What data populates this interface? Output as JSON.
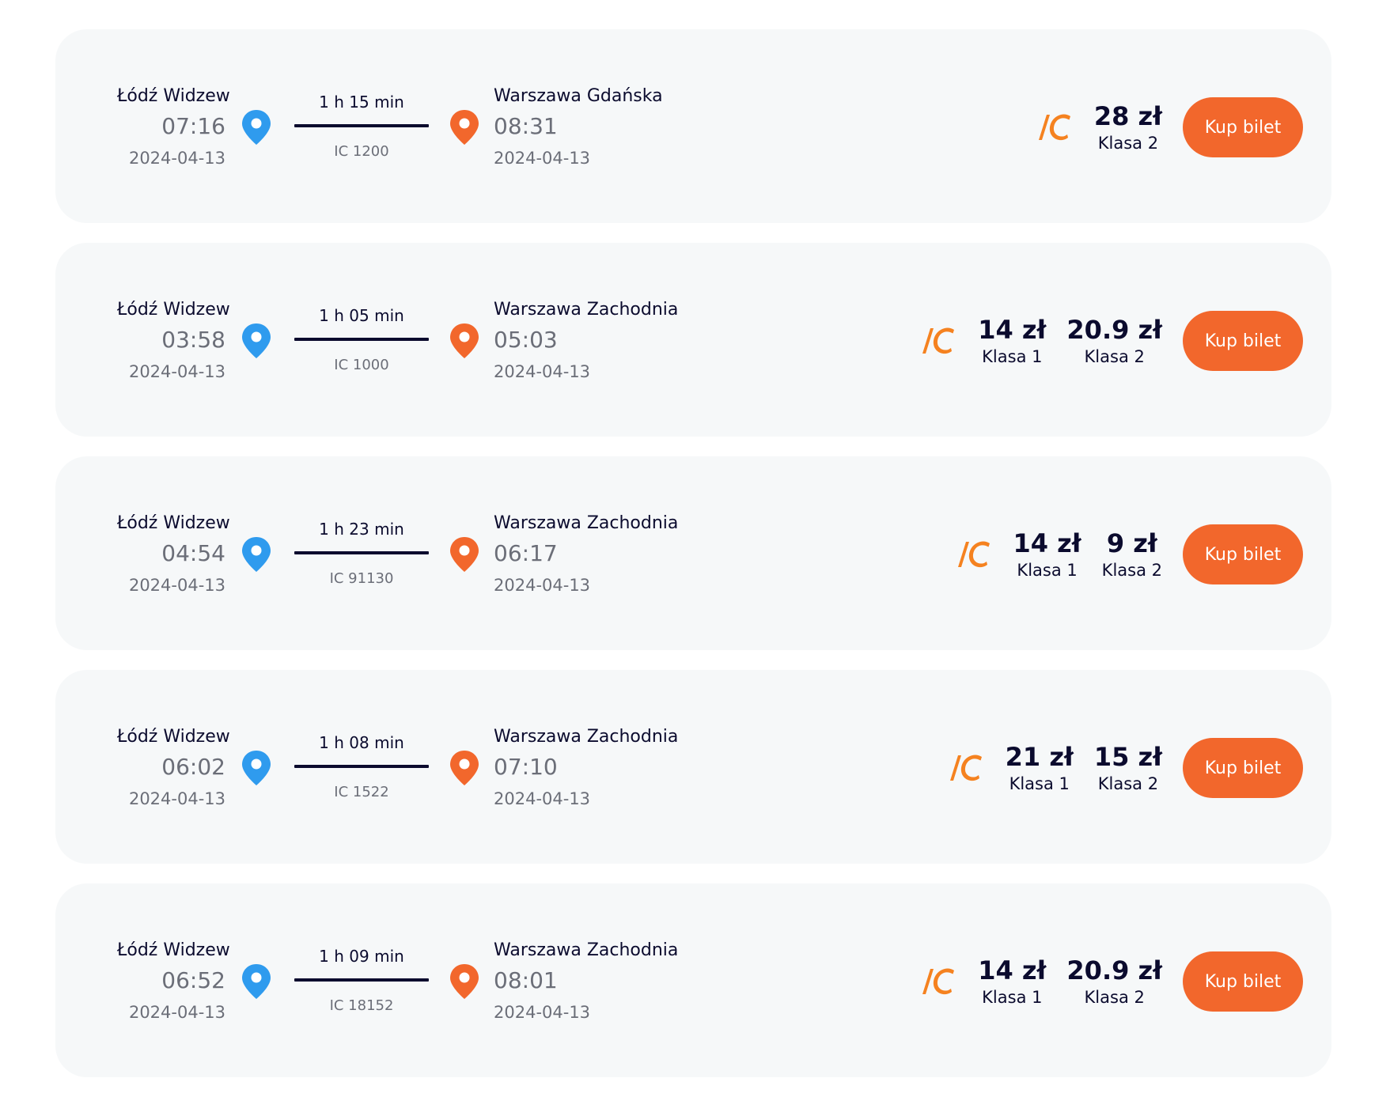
{
  "colors": {
    "card_bg": "#f6f8f9",
    "text_dark": "#0b0b2e",
    "text_grey": "#6b6e78",
    "departure_pin": "#2f9bee",
    "arrival_pin": "#f2672c",
    "button": "#f2672c",
    "logo": "#f58220"
  },
  "icons": {
    "departure": "map-pin-icon",
    "arrival": "map-pin-icon",
    "carrier": "ic-logo"
  },
  "buy_label": "Kup bilet",
  "connections": [
    {
      "departure": {
        "station": "Łódź Widzew",
        "time": "07:16",
        "date": "2024-04-13"
      },
      "duration": "1 h 15 min",
      "train": "IC 1200",
      "arrival": {
        "station": "Warszawa Gdańska",
        "time": "08:31",
        "date": "2024-04-13"
      },
      "prices": [
        {
          "amount": "28 zł",
          "class": "Klasa 2"
        }
      ]
    },
    {
      "departure": {
        "station": "Łódź Widzew",
        "time": "03:58",
        "date": "2024-04-13"
      },
      "duration": "1 h 05 min",
      "train": "IC 1000",
      "arrival": {
        "station": "Warszawa Zachodnia",
        "time": "05:03",
        "date": "2024-04-13"
      },
      "prices": [
        {
          "amount": "14 zł",
          "class": "Klasa 1"
        },
        {
          "amount": "20.9 zł",
          "class": "Klasa 2"
        }
      ]
    },
    {
      "departure": {
        "station": "Łódź Widzew",
        "time": "04:54",
        "date": "2024-04-13"
      },
      "duration": "1 h 23 min",
      "train": "IC 91130",
      "arrival": {
        "station": "Warszawa Zachodnia",
        "time": "06:17",
        "date": "2024-04-13"
      },
      "prices": [
        {
          "amount": "14 zł",
          "class": "Klasa 1"
        },
        {
          "amount": "9 zł",
          "class": "Klasa 2"
        }
      ]
    },
    {
      "departure": {
        "station": "Łódź Widzew",
        "time": "06:02",
        "date": "2024-04-13"
      },
      "duration": "1 h 08 min",
      "train": "IC 1522",
      "arrival": {
        "station": "Warszawa Zachodnia",
        "time": "07:10",
        "date": "2024-04-13"
      },
      "prices": [
        {
          "amount": "21 zł",
          "class": "Klasa 1"
        },
        {
          "amount": "15 zł",
          "class": "Klasa 2"
        }
      ]
    },
    {
      "departure": {
        "station": "Łódź Widzew",
        "time": "06:52",
        "date": "2024-04-13"
      },
      "duration": "1 h 09 min",
      "train": "IC 18152",
      "arrival": {
        "station": "Warszawa Zachodnia",
        "time": "08:01",
        "date": "2024-04-13"
      },
      "prices": [
        {
          "amount": "14 zł",
          "class": "Klasa 1"
        },
        {
          "amount": "20.9 zł",
          "class": "Klasa 2"
        }
      ]
    }
  ]
}
